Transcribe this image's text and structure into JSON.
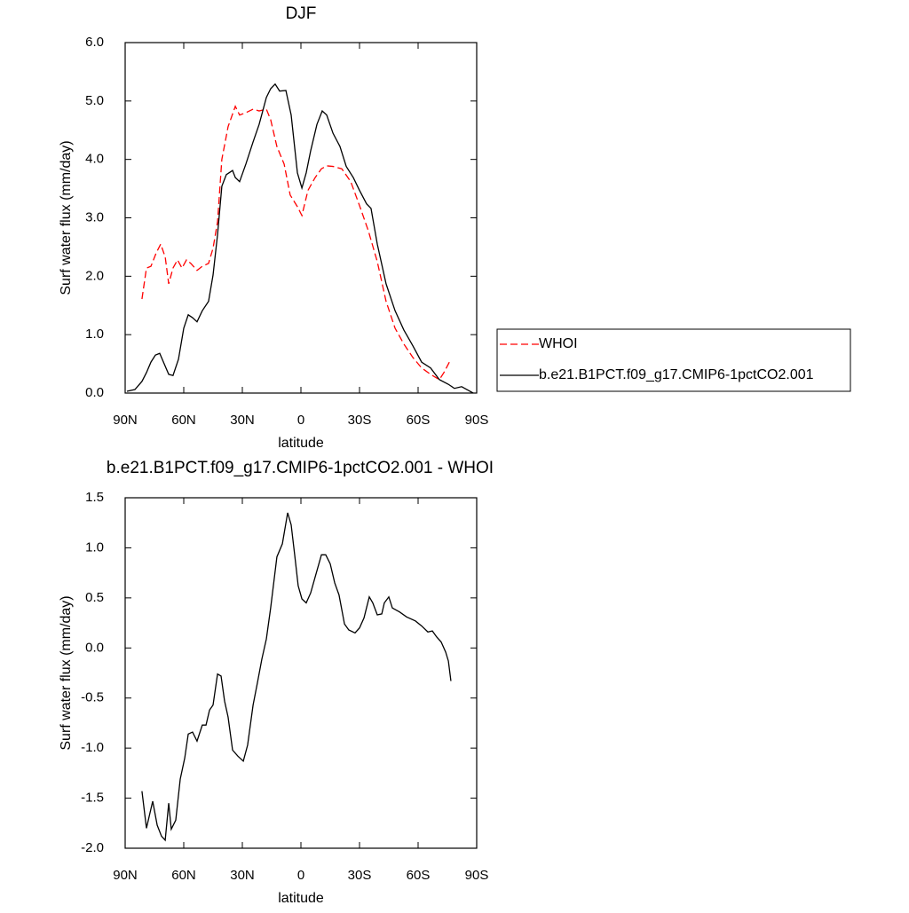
{
  "chart_data": [
    {
      "type": "line",
      "title": "DJF",
      "xlabel": "latitude",
      "ylabel": "Surf water flux (mm/day)",
      "xlim": [
        90,
        -90
      ],
      "xticks": [
        {
          "value": 90,
          "label": "90N"
        },
        {
          "value": 60,
          "label": "60N"
        },
        {
          "value": 30,
          "label": "30N"
        },
        0,
        {
          "value": -30,
          "label": "30S"
        },
        {
          "value": -60,
          "label": "60S"
        },
        {
          "value": -90,
          "label": "90S"
        }
      ],
      "ylim": [
        0,
        6
      ],
      "yticks": [
        {
          "value": 0,
          "label": "0.0"
        },
        {
          "value": 1,
          "label": "1.0"
        },
        {
          "value": 2,
          "label": "2.0"
        },
        {
          "value": 3,
          "label": "3.0"
        },
        {
          "value": 4,
          "label": "4.0"
        },
        {
          "value": 5,
          "label": "5.0"
        },
        {
          "value": 6,
          "label": "6.0"
        }
      ],
      "series": [
        {
          "name": "WHOI",
          "color": "#ff0000",
          "dash": "dashed",
          "x": [
            81.4,
            79.1,
            76.8,
            74.1,
            71.8,
            69.5,
            67.7,
            65.5,
            63.2,
            60.9,
            58.6,
            56.4,
            53.2,
            50.5,
            47.3,
            45.0,
            42.7,
            40.5,
            37.3,
            33.6,
            31.4,
            28.2,
            24.5,
            21.4,
            17.7,
            15.5,
            12.3,
            8.6,
            5.5,
            1.8,
            -0.5,
            -3.6,
            -7.3,
            -10.5,
            -13.2,
            -16.4,
            -20.9,
            -25.5,
            -30.0,
            -34.5,
            -39.1,
            -43.6,
            -48.2,
            -52.7,
            -57.3,
            -61.8,
            -66.4,
            -70.9,
            -73.2,
            -76.8
          ],
          "values": [
            1.61,
            2.14,
            2.17,
            2.4,
            2.55,
            2.33,
            1.87,
            2.14,
            2.28,
            2.14,
            2.28,
            2.22,
            2.1,
            2.17,
            2.22,
            2.48,
            2.93,
            4.0,
            4.56,
            4.91,
            4.76,
            4.8,
            4.86,
            4.83,
            4.86,
            4.68,
            4.22,
            3.92,
            3.39,
            3.19,
            3.04,
            3.47,
            3.69,
            3.84,
            3.89,
            3.88,
            3.84,
            3.62,
            3.21,
            2.78,
            2.25,
            1.57,
            1.11,
            0.84,
            0.61,
            0.43,
            0.32,
            0.23,
            0.35,
            0.58
          ]
        },
        {
          "name": "b.e21.B1PCT.f09_g17.CMIP6-1pctCO2.001",
          "color": "#000000",
          "dash": "solid",
          "x": [
            89.1,
            85.0,
            81.4,
            79.1,
            76.8,
            74.5,
            72.3,
            70.0,
            67.7,
            65.5,
            62.7,
            60.0,
            57.7,
            55.5,
            53.2,
            50.5,
            47.3,
            45.0,
            42.7,
            40.5,
            38.2,
            35.0,
            33.6,
            31.4,
            28.2,
            24.5,
            21.4,
            17.7,
            15.5,
            13.2,
            10.9,
            7.7,
            5.0,
            1.8,
            -0.5,
            -2.7,
            -5.0,
            -8.2,
            -10.9,
            -13.2,
            -16.4,
            -20.0,
            -23.2,
            -26.8,
            -30.0,
            -33.6,
            -35.9,
            -39.1,
            -43.6,
            -48.2,
            -52.7,
            -57.3,
            -61.8,
            -66.4,
            -70.9,
            -75.5,
            -78.6,
            -82.3,
            -85.5,
            -88.2
          ],
          "values": [
            0.03,
            0.06,
            0.2,
            0.35,
            0.53,
            0.65,
            0.68,
            0.5,
            0.32,
            0.3,
            0.58,
            1.11,
            1.34,
            1.29,
            1.22,
            1.41,
            1.57,
            2.02,
            2.71,
            3.54,
            3.74,
            3.81,
            3.69,
            3.62,
            3.92,
            4.3,
            4.6,
            5.06,
            5.21,
            5.29,
            5.17,
            5.18,
            4.76,
            3.77,
            3.51,
            3.77,
            4.15,
            4.6,
            4.83,
            4.76,
            4.45,
            4.22,
            3.88,
            3.69,
            3.47,
            3.24,
            3.16,
            2.55,
            1.87,
            1.41,
            1.08,
            0.81,
            0.53,
            0.43,
            0.23,
            0.15,
            0.08,
            0.11,
            0.05,
            0.0
          ]
        }
      ]
    },
    {
      "type": "line",
      "title": "b.e21.B1PCT.f09_g17.CMIP6-1pctCO2.001 - WHOI",
      "xlabel": "latitude",
      "ylabel": "Surf water flux (mm/day)",
      "xlim": [
        90,
        -90
      ],
      "xticks": [
        {
          "value": 90,
          "label": "90N"
        },
        {
          "value": 60,
          "label": "60N"
        },
        {
          "value": 30,
          "label": "30N"
        },
        0,
        {
          "value": -30,
          "label": "30S"
        },
        {
          "value": -60,
          "label": "60S"
        },
        {
          "value": -90,
          "label": "90S"
        }
      ],
      "ylim": [
        -2,
        1.5
      ],
      "yticks": [
        {
          "value": -2,
          "label": "-2.0"
        },
        -1.5,
        {
          "value": -1,
          "label": "-1.0"
        },
        -0.5,
        {
          "value": 0,
          "label": "0.0"
        },
        0.5,
        {
          "value": 1,
          "label": "1.0"
        },
        1.5
      ],
      "series": [
        {
          "color": "#000000",
          "dash": "solid",
          "x": [
            81.4,
            79.1,
            75.9,
            73.6,
            71.4,
            69.5,
            67.7,
            66.4,
            64.1,
            61.8,
            59.5,
            57.7,
            55.5,
            53.2,
            50.5,
            48.6,
            46.8,
            45.0,
            42.7,
            40.9,
            39.1,
            37.3,
            35.0,
            32.3,
            29.5,
            27.3,
            24.5,
            22.3,
            20.0,
            17.7,
            15.5,
            12.3,
            9.5,
            6.8,
            5.0,
            3.2,
            1.4,
            -0.5,
            -2.7,
            -5.0,
            -7.3,
            -10.5,
            -12.7,
            -15.0,
            -17.3,
            -19.5,
            -22.3,
            -24.5,
            -27.7,
            -30.0,
            -32.3,
            -35.0,
            -36.8,
            -39.1,
            -41.4,
            -42.7,
            -45.0,
            -46.8,
            -50.5,
            -54.1,
            -58.6,
            -61.8,
            -65.0,
            -67.3,
            -69.5,
            -71.8,
            -74.1,
            -75.5,
            -76.8
          ],
          "values": [
            -1.43,
            -1.8,
            -1.53,
            -1.77,
            -1.88,
            -1.92,
            -1.55,
            -1.81,
            -1.72,
            -1.31,
            -1.1,
            -0.86,
            -0.84,
            -0.93,
            -0.77,
            -0.77,
            -0.62,
            -0.57,
            -0.26,
            -0.28,
            -0.53,
            -0.69,
            -1.02,
            -1.08,
            -1.13,
            -0.97,
            -0.57,
            -0.35,
            -0.11,
            0.09,
            0.4,
            0.91,
            1.04,
            1.35,
            1.23,
            0.93,
            0.62,
            0.49,
            0.45,
            0.55,
            0.71,
            0.93,
            0.93,
            0.84,
            0.65,
            0.53,
            0.24,
            0.18,
            0.15,
            0.2,
            0.3,
            0.51,
            0.45,
            0.33,
            0.34,
            0.45,
            0.51,
            0.4,
            0.36,
            0.31,
            0.27,
            0.22,
            0.16,
            0.17,
            0.11,
            0.06,
            -0.04,
            -0.13,
            -0.33
          ]
        }
      ]
    }
  ]
}
